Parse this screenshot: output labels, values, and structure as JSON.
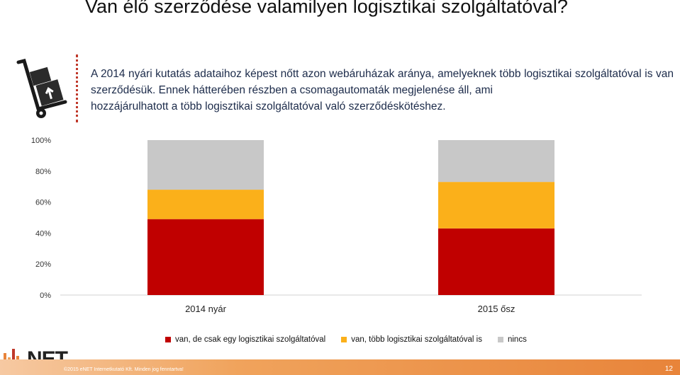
{
  "title": "Van élő szerződése valamilyen logisztikai szolgáltatóval?",
  "intro": {
    "line1": "A 2014 nyári kutatás adataihoz képest nőtt azon webáruházak aránya, amelyeknek több logisztikai szolgáltatóval is van szerződésük. Ennek hátterében részben a csomagautomaták megjelenése áll, ami",
    "line2": "hozzájárulhatott a több logisztikai szolgáltatóval való szerződéskötéshez."
  },
  "colors": {
    "series1": "#c00000",
    "series2": "#fbb01a",
    "series3": "#c8c8c8",
    "accent": "#c0392b"
  },
  "chart_data": {
    "type": "bar",
    "stacked": true,
    "categories": [
      "2014 nyár",
      "2015 ősz"
    ],
    "series": [
      {
        "name": "van, de csak egy logisztikai szolgáltatóval",
        "values": [
          49,
          43
        ]
      },
      {
        "name": "van, több logisztikai szolgáltatóval is",
        "values": [
          19,
          30
        ]
      },
      {
        "name": "nincs",
        "values": [
          32,
          27
        ]
      }
    ],
    "y_ticks": [
      "0%",
      "20%",
      "40%",
      "60%",
      "80%",
      "100%"
    ],
    "ylim": [
      0,
      100
    ],
    "grid": false,
    "legend_position": "bottom"
  },
  "logo": {
    "text": "NET"
  },
  "footer": {
    "copyright": "©2015 eNET Internetkutató Kft. Minden jog fenntartva!",
    "page_number": "12"
  },
  "icons": {
    "logistics": "hand-truck-box-icon"
  }
}
